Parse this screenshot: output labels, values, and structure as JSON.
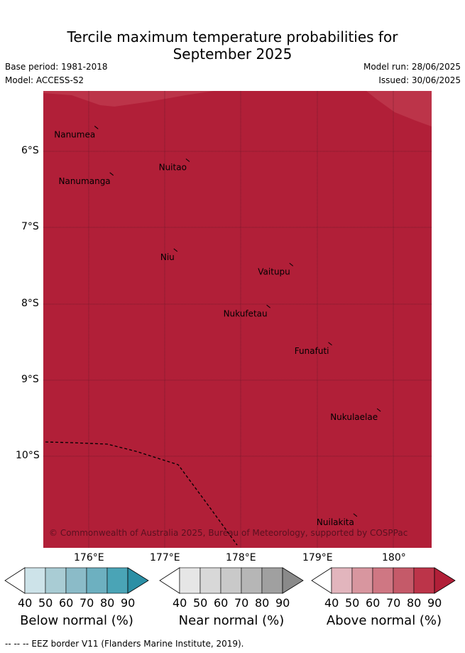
{
  "title_line1": "Tercile maximum temperature probabilities for",
  "title_line2": "September 2025",
  "base_period": "Base period: 1981-2018",
  "model": "Model: ACCESS-S2",
  "model_run": "Model run: 28/06/2025",
  "issued": "Issued: 30/06/2025",
  "copyright": "© Commonwealth of Australia 2025, Bureau of Meteorology, supported by COSPPac",
  "lat_ticks": [
    "6°S",
    "7°S",
    "8°S",
    "9°S",
    "10°S"
  ],
  "lon_ticks": [
    "176°E",
    "177°E",
    "178°E",
    "179°E",
    "180°"
  ],
  "islands": [
    {
      "name": "Nanumea",
      "lon": 176.12,
      "lat": -5.68
    },
    {
      "name": "Nuitao",
      "lon": 177.32,
      "lat": -6.11
    },
    {
      "name": "Nanumanga",
      "lon": 176.32,
      "lat": -6.29
    },
    {
      "name": "Niu",
      "lon": 177.16,
      "lat": -7.29
    },
    {
      "name": "Vaitupu",
      "lon": 178.68,
      "lat": -7.48
    },
    {
      "name": "Nukufetau",
      "lon": 178.38,
      "lat": -8.03
    },
    {
      "name": "Funafuti",
      "lon": 179.19,
      "lat": -8.52
    },
    {
      "name": "Nukulaelae",
      "lon": 179.83,
      "lat": -9.39
    },
    {
      "name": "Nuilakita",
      "lon": 179.52,
      "lat": -10.77
    }
  ],
  "colorbars": [
    {
      "title": "Below normal (%)",
      "labels": [
        "40",
        "50",
        "60",
        "70",
        "80",
        "90"
      ],
      "colors": [
        "#ffffff",
        "#cde3e9",
        "#a9ccd4",
        "#8bbbc8",
        "#6db0c0",
        "#4aa4b6",
        "#2b8fa5"
      ]
    },
    {
      "title": "Near normal (%)",
      "labels": [
        "40",
        "50",
        "60",
        "70",
        "80",
        "90"
      ],
      "colors": [
        "#ffffff",
        "#e6e6e6",
        "#d8d8d8",
        "#c9c9c9",
        "#b6b6b6",
        "#a0a0a0",
        "#8a8a8a"
      ]
    },
    {
      "title": "Above normal (%)",
      "labels": [
        "40",
        "50",
        "60",
        "70",
        "80",
        "90"
      ],
      "colors": [
        "#ffffff",
        "#e2b5bd",
        "#d8969f",
        "#cf7783",
        "#c55a69",
        "#bc3449",
        "#b11f38"
      ]
    }
  ],
  "colors": {
    "field_main": "#b11f38",
    "field_light": "#bc3449"
  },
  "footer": "--  --  -- EEZ border V11 (Flanders Marine Institute, 2019)."
}
